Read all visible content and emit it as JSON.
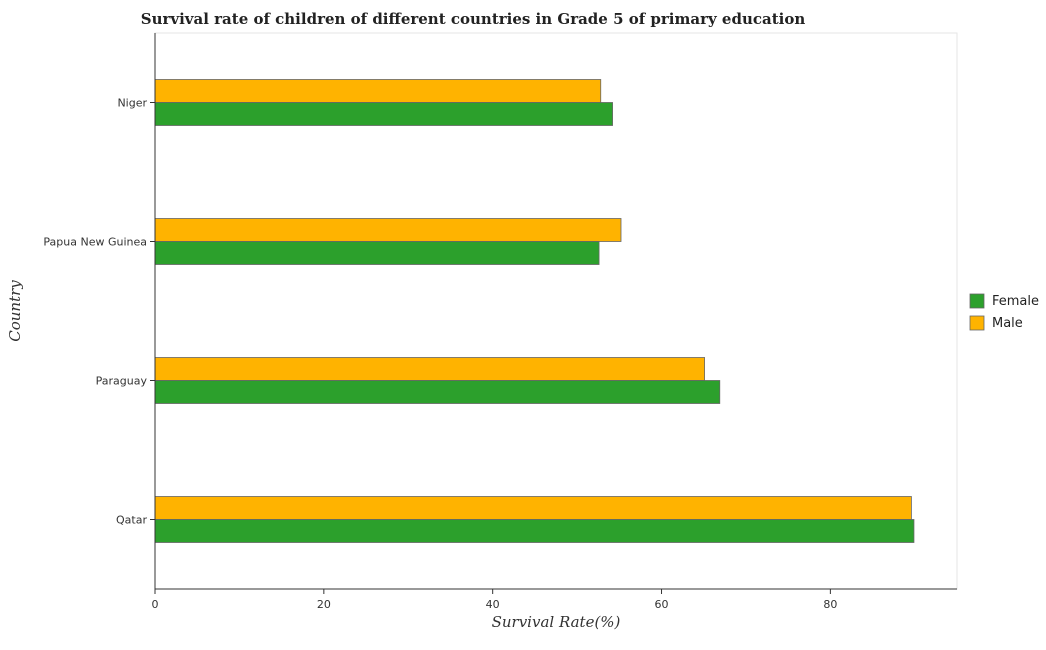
{
  "chart_data": {
    "type": "bar",
    "orientation": "horizontal",
    "title": "Survival rate of children of different countries in Grade 5 of primary education",
    "xlabel": "Survival Rate(%)",
    "ylabel": "Country",
    "categories": [
      "Niger",
      "Papua New Guinea",
      "Paraguay",
      "Qatar"
    ],
    "series": [
      {
        "name": "Female",
        "color": "#2ca02c",
        "values": [
          54.2,
          52.6,
          66.9,
          89.9
        ]
      },
      {
        "name": "Male",
        "color": "#ffb300",
        "values": [
          52.8,
          55.2,
          65.1,
          89.6
        ]
      }
    ],
    "xlim": [
      0,
      95
    ],
    "xticks": [
      0,
      20,
      40,
      60,
      80
    ],
    "xtick_labels": [
      "0",
      "20",
      "40",
      "60",
      "80"
    ],
    "grid": false,
    "legend_position": "right"
  }
}
